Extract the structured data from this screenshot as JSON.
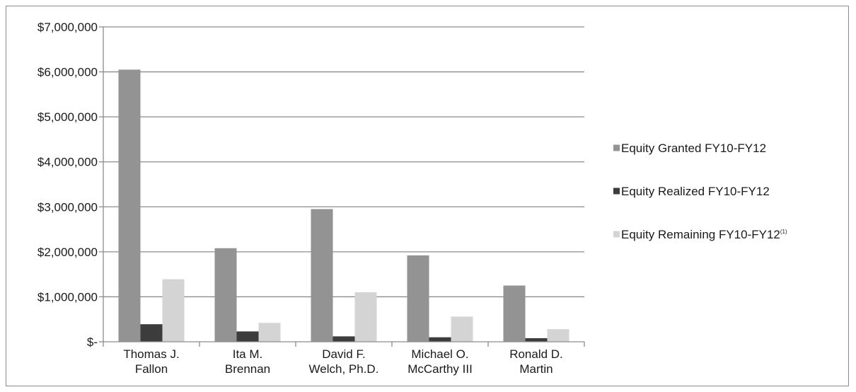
{
  "chart_data": {
    "type": "bar",
    "categories": [
      [
        "Thomas J.",
        "Fallon"
      ],
      [
        "Ita M.",
        "Brennan"
      ],
      [
        "David F.",
        "Welch, Ph.D."
      ],
      [
        "Michael O.",
        "McCarthy III"
      ],
      [
        "Ronald D.",
        "Martin"
      ]
    ],
    "series": [
      {
        "name": "Equity Granted FY10-FY12",
        "name_superscript": "",
        "color": "#939393",
        "values": [
          6050000,
          2080000,
          2950000,
          1920000,
          1250000
        ]
      },
      {
        "name": "Equity Realized FY10-FY12",
        "name_superscript": "",
        "color": "#3c3c3c",
        "values": [
          390000,
          230000,
          120000,
          100000,
          80000
        ]
      },
      {
        "name": "Equity Remaining FY10-FY12",
        "name_superscript": "(1)",
        "color": "#d4d4d4",
        "values": [
          1390000,
          420000,
          1100000,
          560000,
          280000
        ]
      }
    ],
    "y_ticks": [
      {
        "value": 0,
        "label": "$-"
      },
      {
        "value": 1000000,
        "label": "$1,000,000"
      },
      {
        "value": 2000000,
        "label": "$2,000,000"
      },
      {
        "value": 3000000,
        "label": "$3,000,000"
      },
      {
        "value": 4000000,
        "label": "$4,000,000"
      },
      {
        "value": 5000000,
        "label": "$5,000,000"
      },
      {
        "value": 6000000,
        "label": "$6,000,000"
      },
      {
        "value": 7000000,
        "label": "$7,000,000"
      }
    ],
    "ylim": [
      0,
      7000000
    ],
    "title": "",
    "xlabel": "",
    "ylabel": "",
    "grid": "horizontal",
    "legend_position": "right",
    "gridline_color": "#8c8c8c"
  }
}
